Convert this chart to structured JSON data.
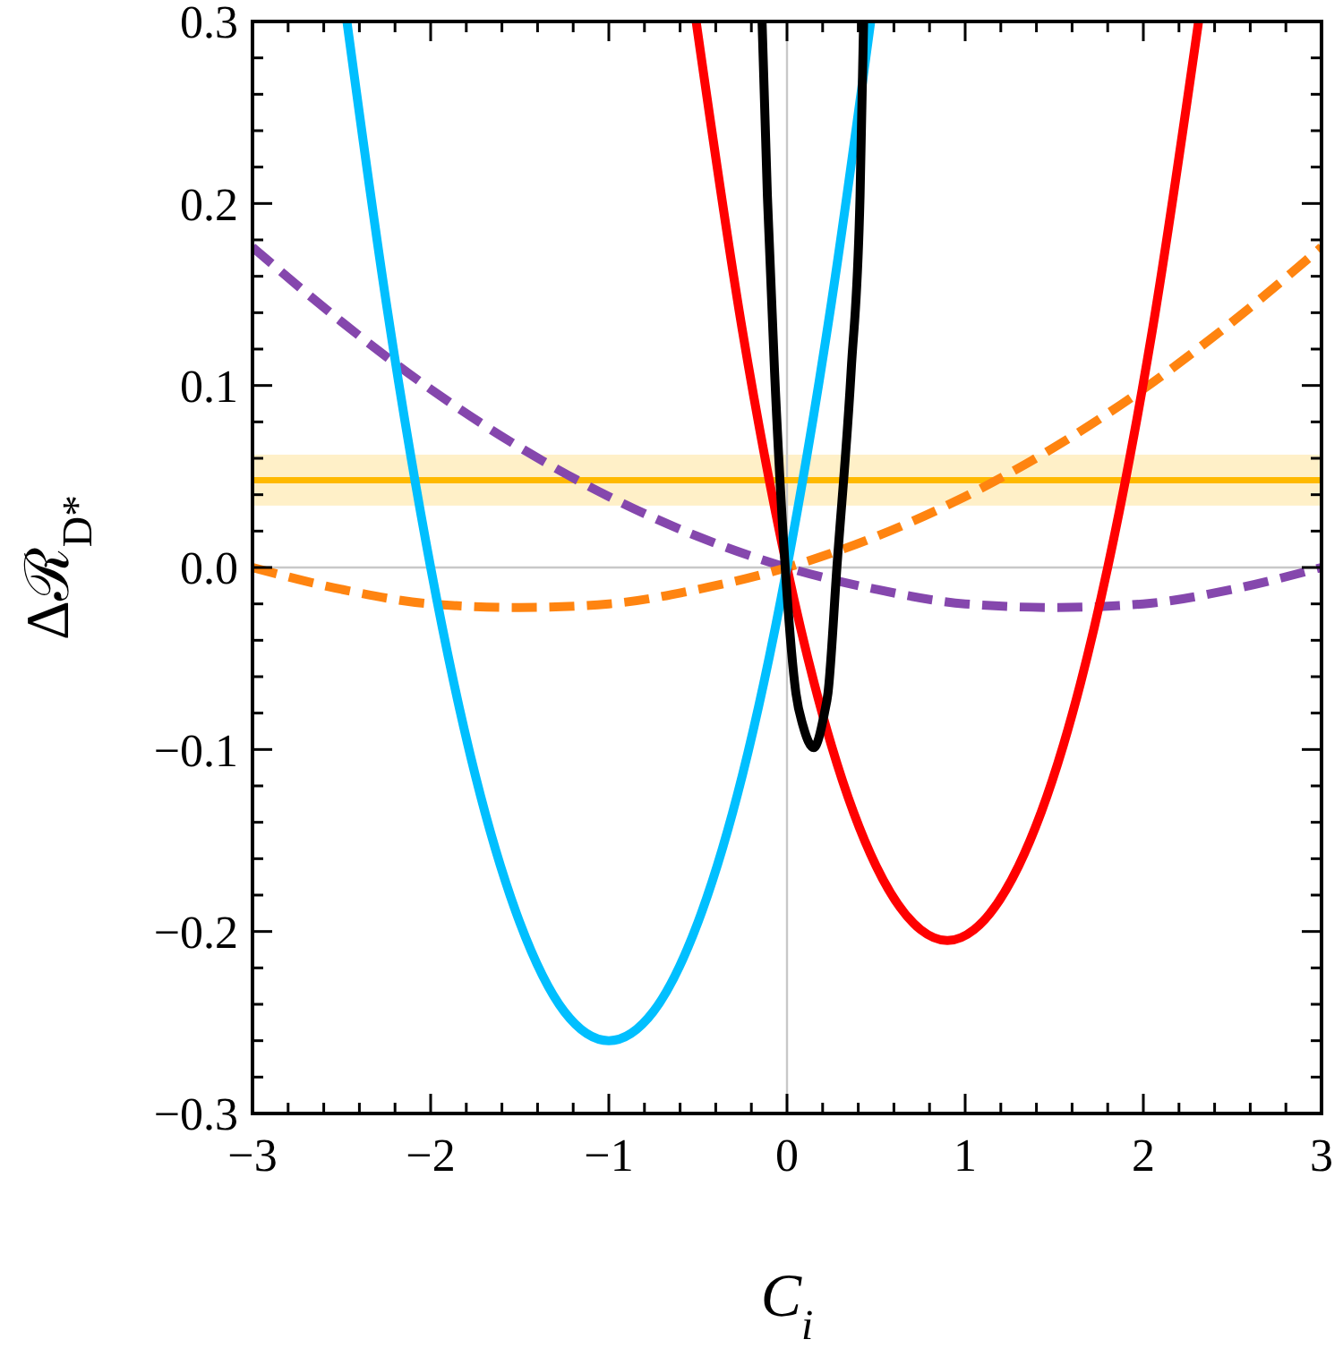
{
  "chart_data": {
    "type": "line",
    "xlabel": "C$_{i}$",
    "ylabel": "Δℛ$_{D*}$",
    "xlim": [
      -3,
      3
    ],
    "ylim": [
      -0.3,
      0.3
    ],
    "xticks": [
      {
        "value": -3,
        "label": "−3"
      },
      {
        "value": -2.8,
        "label": null
      },
      {
        "value": -2.6,
        "label": null
      },
      {
        "value": -2.4,
        "label": null
      },
      {
        "value": -2.2,
        "label": null
      },
      {
        "value": -2,
        "label": "−2"
      },
      {
        "value": -1.8,
        "label": null
      },
      {
        "value": -1.6,
        "label": null
      },
      {
        "value": -1.4,
        "label": null
      },
      {
        "value": -1.2,
        "label": null
      },
      {
        "value": -1,
        "label": "−1"
      },
      {
        "value": -0.8,
        "label": null
      },
      {
        "value": -0.6,
        "label": null
      },
      {
        "value": -0.4,
        "label": null
      },
      {
        "value": -0.2,
        "label": null
      },
      {
        "value": 0,
        "label": "0"
      },
      {
        "value": 0.2,
        "label": null
      },
      {
        "value": 0.4,
        "label": null
      },
      {
        "value": 0.6,
        "label": null
      },
      {
        "value": 0.8,
        "label": null
      },
      {
        "value": 1,
        "label": "1"
      },
      {
        "value": 1.2,
        "label": null
      },
      {
        "value": 1.4,
        "label": null
      },
      {
        "value": 1.6,
        "label": null
      },
      {
        "value": 1.8,
        "label": null
      },
      {
        "value": 2,
        "label": "2"
      },
      {
        "value": 2.2,
        "label": null
      },
      {
        "value": 2.4,
        "label": null
      },
      {
        "value": 2.6,
        "label": null
      },
      {
        "value": 2.8,
        "label": null
      },
      {
        "value": 3,
        "label": "3"
      }
    ],
    "yticks": [
      {
        "value": -0.3,
        "label": "−0.3"
      },
      {
        "value": -0.28,
        "label": null
      },
      {
        "value": -0.26,
        "label": null
      },
      {
        "value": -0.24,
        "label": null
      },
      {
        "value": -0.22,
        "label": null
      },
      {
        "value": -0.2,
        "label": "−0.2"
      },
      {
        "value": -0.18,
        "label": null
      },
      {
        "value": -0.16,
        "label": null
      },
      {
        "value": -0.14,
        "label": null
      },
      {
        "value": -0.12,
        "label": null
      },
      {
        "value": -0.1,
        "label": "−0.1"
      },
      {
        "value": -0.08,
        "label": null
      },
      {
        "value": -0.06,
        "label": null
      },
      {
        "value": -0.04,
        "label": null
      },
      {
        "value": -0.02,
        "label": null
      },
      {
        "value": 0,
        "label": "0.0"
      },
      {
        "value": 0.02,
        "label": null
      },
      {
        "value": 0.04,
        "label": null
      },
      {
        "value": 0.06,
        "label": null
      },
      {
        "value": 0.08,
        "label": null
      },
      {
        "value": 0.1,
        "label": "0.1"
      },
      {
        "value": 0.12,
        "label": null
      },
      {
        "value": 0.14,
        "label": null
      },
      {
        "value": 0.16,
        "label": null
      },
      {
        "value": 0.18,
        "label": null
      },
      {
        "value": 0.2,
        "label": "0.2"
      },
      {
        "value": 0.22,
        "label": null
      },
      {
        "value": 0.24,
        "label": null
      },
      {
        "value": 0.26,
        "label": null
      },
      {
        "value": 0.28,
        "label": null
      },
      {
        "value": 0.3,
        "label": "0.3"
      }
    ],
    "ref_lines": [
      {
        "axis": "x",
        "value": 0,
        "color": "#c8c8c8"
      },
      {
        "axis": "y",
        "value": 0,
        "color": "#c8c8c8"
      },
      {
        "axis": "y",
        "value": 0.048,
        "color": "#ffb900"
      }
    ],
    "bands": [
      {
        "axis": "y",
        "from": 0.034,
        "to": 0.062,
        "color": "#fff0c8"
      }
    ],
    "series": [
      {
        "color": "#8547ad",
        "line_style": "dashed",
        "x": [
          -3,
          -2.5,
          -2,
          -1.5,
          -1,
          -0.5,
          0,
          0.5,
          1,
          1.5,
          2,
          2.5,
          3
        ],
        "values": [
          0.176,
          0.135,
          0.098,
          0.066,
          0.039,
          0.017,
          0,
          -0.012,
          -0.02,
          -0.022,
          -0.02,
          -0.012,
          0
        ]
      },
      {
        "color": "#ff8410",
        "line_style": "dashed",
        "x": [
          -3,
          -2.5,
          -2,
          -1.5,
          -1,
          -0.5,
          0,
          0.5,
          1,
          1.5,
          2,
          2.5,
          3
        ],
        "values": [
          0,
          -0.012,
          -0.02,
          -0.022,
          -0.02,
          -0.012,
          0,
          0.017,
          0.039,
          0.066,
          0.098,
          0.135,
          0.176
        ]
      },
      {
        "color": "#ff0000",
        "line_style": "solid",
        "x": [
          -0.51,
          -0.25,
          0,
          0.25,
          0.5,
          0.75,
          0.9,
          1.05,
          1.3,
          1.55,
          1.8,
          2.05,
          2.31
        ],
        "values": [
          0.3,
          0.13,
          0,
          -0.098,
          -0.164,
          -0.199,
          -0.205,
          -0.199,
          -0.164,
          -0.098,
          0,
          0.13,
          0.3
        ]
      },
      {
        "color": "#00bfff",
        "line_style": "solid",
        "x": [
          -2.47,
          -2.25,
          -2,
          -1.75,
          -1.5,
          -1.25,
          -1,
          -0.75,
          -0.5,
          -0.25,
          0,
          0.25,
          0.47
        ],
        "values": [
          0.3,
          0.146,
          0,
          -0.114,
          -0.195,
          -0.244,
          -0.26,
          -0.244,
          -0.195,
          -0.114,
          0,
          0.146,
          0.3
        ]
      },
      {
        "color": "#000000",
        "line_style": "solid",
        "x": [
          -0.14,
          -0.11,
          -0.07,
          -0.01,
          0.05,
          0.09,
          0.15,
          0.21,
          0.23,
          0.28,
          0.36,
          0.41,
          0.43
        ],
        "values": [
          0.3,
          0.204,
          0.108,
          0,
          -0.069,
          -0.087,
          -0.099,
          -0.08,
          -0.069,
          0,
          0.108,
          0.204,
          0.3
        ]
      }
    ]
  }
}
